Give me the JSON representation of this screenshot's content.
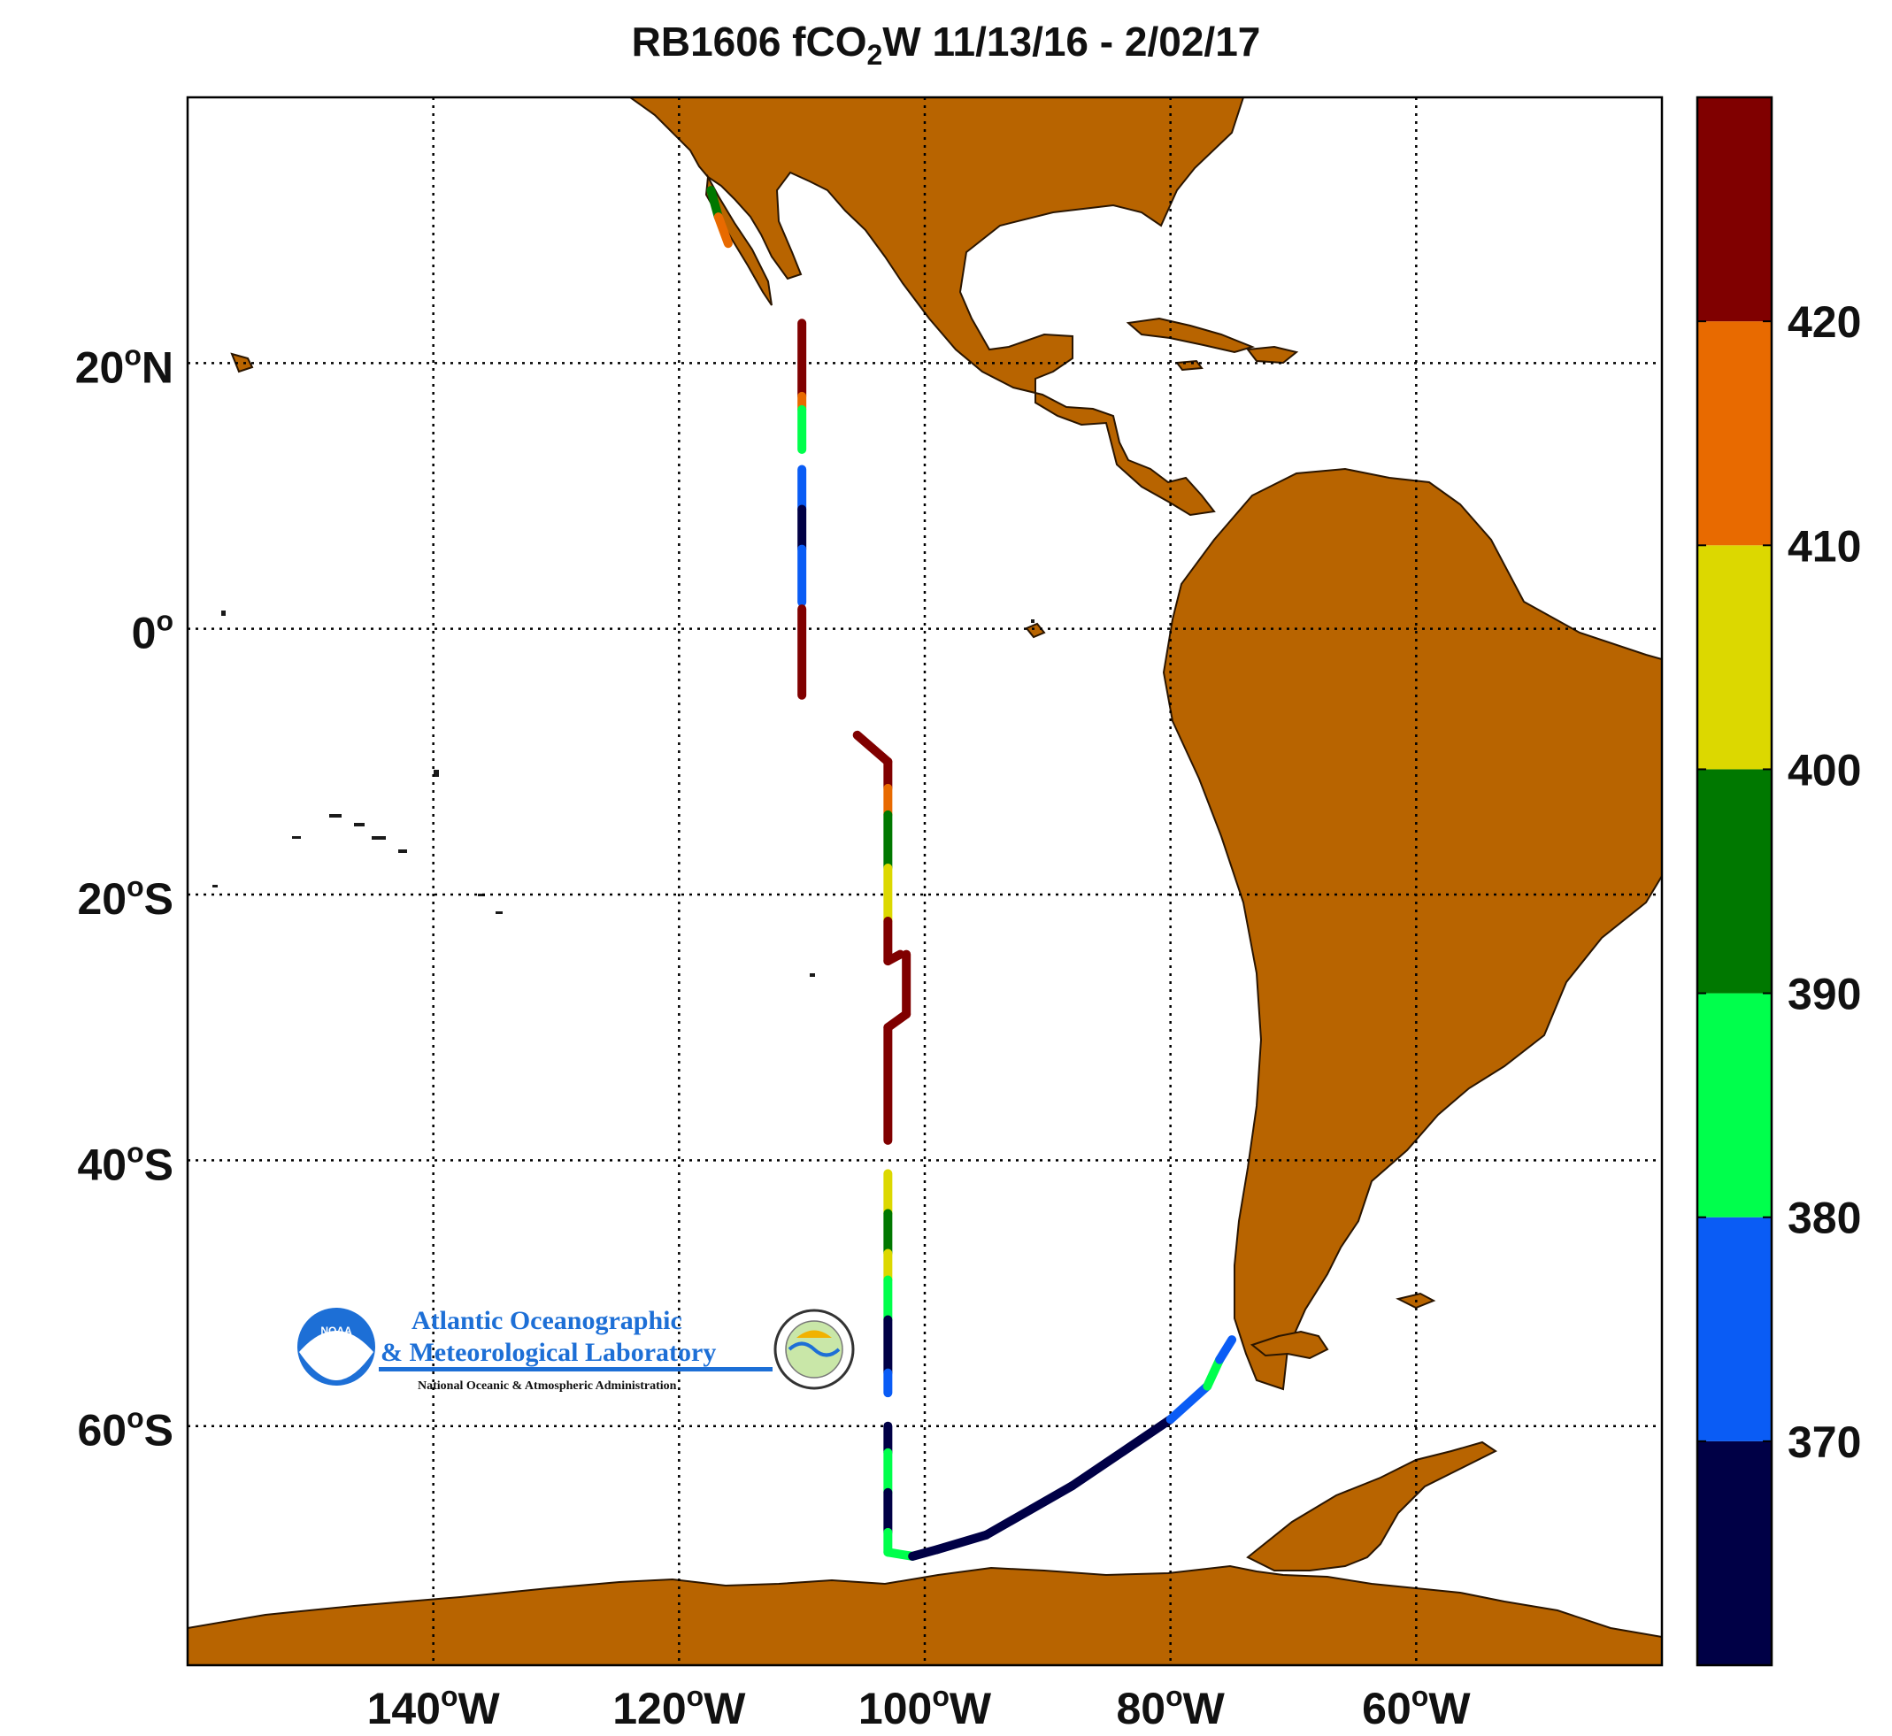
{
  "title": {
    "prefix": "RB1606 fCO",
    "sub": "2",
    "suffix": "W 11/13/16 - 2/02/17"
  },
  "axes": {
    "lon_ticks": [
      {
        "value": -140,
        "deg": "140",
        "hemi": "W"
      },
      {
        "value": -120,
        "deg": "120",
        "hemi": "W"
      },
      {
        "value": -100,
        "deg": "100",
        "hemi": "W"
      },
      {
        "value": -80,
        "deg": "80",
        "hemi": "W"
      },
      {
        "value": -60,
        "deg": "60",
        "hemi": "W"
      }
    ],
    "lat_ticks": [
      {
        "value": 20,
        "deg": "20",
        "hemi": "N"
      },
      {
        "value": 0,
        "deg": "0",
        "hemi": ""
      },
      {
        "value": -20,
        "deg": "20",
        "hemi": "S"
      },
      {
        "value": -40,
        "deg": "40",
        "hemi": "S"
      },
      {
        "value": -60,
        "deg": "60",
        "hemi": "S"
      }
    ],
    "lon_range": [
      -160,
      -40
    ],
    "lat_range": [
      -78,
      40
    ],
    "grid": "dotted",
    "land_color": "#B86400"
  },
  "colorbar": {
    "range": [
      360,
      430
    ],
    "tick_labels": [
      "370",
      "380",
      "390",
      "400",
      "410",
      "420"
    ],
    "bins": [
      {
        "from": 360,
        "to": 370,
        "color": "#000046"
      },
      {
        "from": 370,
        "to": 380,
        "color": "#0A5CF5"
      },
      {
        "from": 380,
        "to": 390,
        "color": "#00FF4C"
      },
      {
        "from": 390,
        "to": 400,
        "color": "#007800"
      },
      {
        "from": 400,
        "to": 410,
        "color": "#DCD800"
      },
      {
        "from": 410,
        "to": 420,
        "color": "#E86A00"
      },
      {
        "from": 420,
        "to": 430,
        "color": "#800000"
      }
    ]
  },
  "logo": {
    "badge": "NOAA",
    "line1": "Atlantic Oceanographic",
    "line2": "& Meteorological Laboratory",
    "line3": "National Oceanic & Atmospheric Administration"
  },
  "chart_data": {
    "type": "scatter",
    "x_name": "longitude",
    "y_name": "latitude",
    "color_name": "fCO2W",
    "segments": [
      {
        "lat": [
          33,
          31
        ],
        "lon": [
          -117.4,
          -116.8
        ],
        "fco2": 395
      },
      {
        "lat": [
          31,
          29
        ],
        "lon": [
          -116.8,
          -116.0
        ],
        "fco2": 415
      },
      {
        "lat": [
          23,
          17.5
        ],
        "lon": [
          -110,
          -110
        ],
        "fco2": 425
      },
      {
        "lat": [
          17.5,
          16.5
        ],
        "lon": [
          -110,
          -110
        ],
        "fco2": 415
      },
      {
        "lat": [
          16.5,
          13.5
        ],
        "lon": [
          -110,
          -110
        ],
        "fco2": 385
      },
      {
        "lat": [
          12,
          9
        ],
        "lon": [
          -110,
          -110
        ],
        "fco2": 375
      },
      {
        "lat": [
          9,
          6
        ],
        "lon": [
          -110,
          -110
        ],
        "fco2": 365
      },
      {
        "lat": [
          6,
          2
        ],
        "lon": [
          -110,
          -110
        ],
        "fco2": 375
      },
      {
        "lat": [
          1.5,
          -5
        ],
        "lon": [
          -110,
          -110
        ],
        "fco2": 425
      },
      {
        "lat": [
          -8,
          -10
        ],
        "lon": [
          -105.5,
          -103
        ],
        "fco2": 425
      },
      {
        "lat": [
          -10,
          -12
        ],
        "lon": [
          -103,
          -103
        ],
        "fco2": 425
      },
      {
        "lat": [
          -12,
          -14
        ],
        "lon": [
          -103,
          -103
        ],
        "fco2": 415
      },
      {
        "lat": [
          -14,
          -18
        ],
        "lon": [
          -103,
          -103
        ],
        "fco2": 395
      },
      {
        "lat": [
          -18,
          -22
        ],
        "lon": [
          -103,
          -103
        ],
        "fco2": 405
      },
      {
        "lat": [
          -22,
          -25
        ],
        "lon": [
          -103,
          -103
        ],
        "fco2": 425
      },
      {
        "lat": [
          -25,
          -24.5
        ],
        "lon": [
          -103,
          -102
        ],
        "fco2": 425
      },
      {
        "lat": [
          -24.5,
          -29
        ],
        "lon": [
          -101.5,
          -101.5
        ],
        "fco2": 425
      },
      {
        "lat": [
          -29,
          -30
        ],
        "lon": [
          -101.5,
          -103
        ],
        "fco2": 425
      },
      {
        "lat": [
          -30,
          -38.5
        ],
        "lon": [
          -103,
          -103
        ],
        "fco2": 425
      },
      {
        "lat": [
          -41,
          -44
        ],
        "lon": [
          -103,
          -103
        ],
        "fco2": 405
      },
      {
        "lat": [
          -44,
          -47
        ],
        "lon": [
          -103,
          -103
        ],
        "fco2": 395
      },
      {
        "lat": [
          -47,
          -49
        ],
        "lon": [
          -103,
          -103
        ],
        "fco2": 405
      },
      {
        "lat": [
          -49,
          -52
        ],
        "lon": [
          -103,
          -103
        ],
        "fco2": 385
      },
      {
        "lat": [
          -52,
          -56
        ],
        "lon": [
          -103,
          -103
        ],
        "fco2": 365
      },
      {
        "lat": [
          -56,
          -57.5
        ],
        "lon": [
          -103,
          -103
        ],
        "fco2": 375
      },
      {
        "lat": [
          -60,
          -62
        ],
        "lon": [
          -103,
          -103
        ],
        "fco2": 365
      },
      {
        "lat": [
          -62,
          -65
        ],
        "lon": [
          -103,
          -103
        ],
        "fco2": 385
      },
      {
        "lat": [
          -65,
          -68
        ],
        "lon": [
          -103,
          -103
        ],
        "fco2": 365
      },
      {
        "lat": [
          -68,
          -69.5
        ],
        "lon": [
          -103,
          -103
        ],
        "fco2": 385
      },
      {
        "lat": [
          -69.5,
          -69.8
        ],
        "lon": [
          -103,
          -101
        ],
        "fco2": 385
      },
      {
        "lat": [
          -69.8,
          -69.3
        ],
        "lon": [
          -101,
          -99
        ],
        "fco2": 365
      },
      {
        "lat": [
          -69.3,
          -68.2
        ],
        "lon": [
          -99,
          -95
        ],
        "fco2": 365
      },
      {
        "lat": [
          -68.2,
          -64.5
        ],
        "lon": [
          -95,
          -88
        ],
        "fco2": 365
      },
      {
        "lat": [
          -64.5,
          -59.5
        ],
        "lon": [
          -88,
          -80
        ],
        "fco2": 365
      },
      {
        "lat": [
          -59.5,
          -57
        ],
        "lon": [
          -80,
          -77
        ],
        "fco2": 375
      },
      {
        "lat": [
          -57,
          -55
        ],
        "lon": [
          -77,
          -76
        ],
        "fco2": 385
      },
      {
        "lat": [
          -55,
          -53.5
        ],
        "lon": [
          -76,
          -75
        ],
        "fco2": 375
      }
    ]
  }
}
